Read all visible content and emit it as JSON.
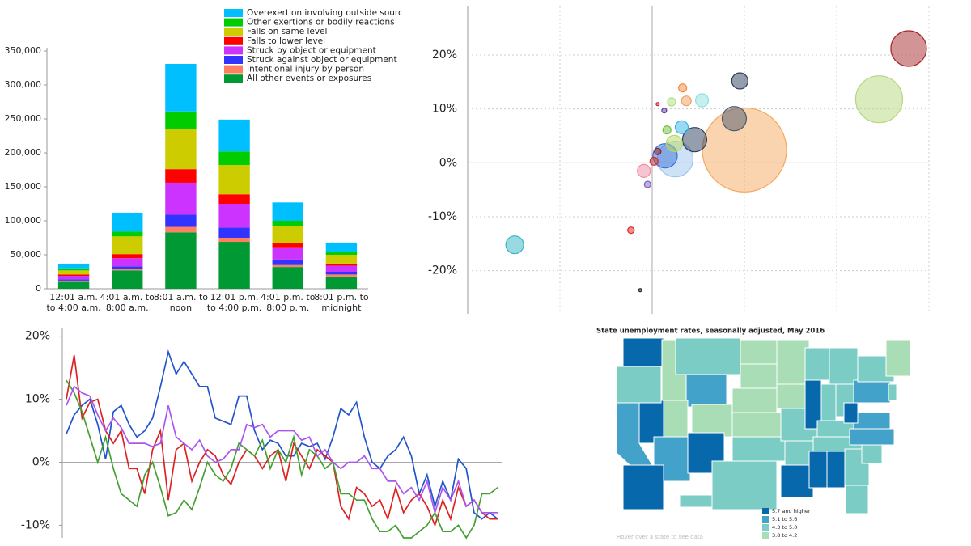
{
  "chart_data": [
    {
      "type": "bar",
      "categories": [
        [
          "12:01 a.m.",
          "to 4:00 a.m."
        ],
        [
          "4:01 a.m. to",
          "8:00 a.m."
        ],
        [
          "8:01 a.m. to",
          "noon"
        ],
        [
          "12:01 p.m.",
          "to 4:00 p.m."
        ],
        [
          "4:01 p.m. to",
          "8:00 p.m."
        ],
        [
          "8:01 p.m. to",
          "midnight"
        ]
      ],
      "series": [
        {
          "name": "Overexertion involving outside sourc",
          "color": "#00bfff",
          "values": [
            7000,
            28000,
            70000,
            47000,
            27000,
            14000
          ]
        },
        {
          "name": "Other exertions or bodily reactions",
          "color": "#00cc00",
          "values": [
            3000,
            7000,
            26000,
            20000,
            8000,
            4000
          ]
        },
        {
          "name": "Falls on same level",
          "color": "#cccc00",
          "values": [
            6000,
            26000,
            59000,
            43000,
            25000,
            13000
          ]
        },
        {
          "name": "Falls to lower level",
          "color": "#ff0000",
          "values": [
            2000,
            6000,
            20000,
            14000,
            6000,
            3000
          ]
        },
        {
          "name": "Struck by object or equipment",
          "color": "#cc33ff",
          "values": [
            5000,
            12000,
            47000,
            35000,
            18000,
            9000
          ]
        },
        {
          "name": "Struck against object or equipment",
          "color": "#3333ff",
          "values": [
            2000,
            4000,
            18000,
            15000,
            7000,
            4000
          ]
        },
        {
          "name": "Intentional injury by person",
          "color": "#ff8060",
          "values": [
            2000,
            2000,
            8000,
            6000,
            4000,
            3000
          ]
        },
        {
          "name": "All other events or exposures",
          "color": "#009933",
          "values": [
            10000,
            27000,
            83000,
            69000,
            32000,
            18000
          ]
        }
      ],
      "ylim": [
        0,
        350000
      ],
      "yticks": [
        0,
        {
          "value": 50000,
          "label": "50,000"
        },
        {
          "value": 100000,
          "label": "100,000"
        },
        {
          "value": 150000,
          "label": "150,000"
        },
        {
          "value": 200000,
          "label": "200,000"
        },
        {
          "value": 250000,
          "label": "250,000"
        },
        {
          "value": 300000,
          "label": "300,000"
        },
        {
          "value": 350000,
          "label": "350,000"
        }
      ],
      "legend": "top-right"
    },
    {
      "type": "scatter",
      "x": [
        27.8,
        24.6,
        10,
        9.5,
        8.9,
        4.6,
        1.4,
        2.5,
        3.2,
        -14.9,
        -0.9,
        -2.3,
        -1.3,
        -0.5,
        3.3,
        3.7,
        5.4,
        2.1,
        1.3,
        0.6,
        1.6,
        2.4,
        0.2,
        0.6
      ],
      "values": [
        21.2,
        11.8,
        2.4,
        15.2,
        8.2,
        4.3,
        1.3,
        0.7,
        6.6,
        -15.2,
        -1.5,
        -12.5,
        -23.6,
        -4,
        13.9,
        11.5,
        11.6,
        11.3,
        9.7,
        10.9,
        6.1,
        3.6,
        0.3,
        2.1
      ],
      "sizes": [
        484,
        841,
        2704,
        100,
        225,
        225,
        225,
        484,
        64,
        121,
        64,
        16,
        4,
        16,
        25,
        36,
        64,
        25,
        9,
        4,
        25,
        100,
        25,
        16
      ],
      "colors": [
        "#a52a2a",
        "#b5d77e",
        "#f5a860",
        "#2c3e5c",
        "#4a5a70",
        "#2c3e5c",
        "#3a6fd8",
        "#9ec5f0",
        "#33b5e5",
        "#33b5c5",
        "#f08aa0",
        "#e02020",
        "#222222",
        "#8060c0",
        "#f08a40",
        "#f0a060",
        "#8ee0e0",
        "#b0e080",
        "#6040a0",
        "#d02040",
        "#70c040",
        "#b8d860",
        "#d03030",
        "#902020"
      ],
      "xlim": [
        -20,
        30
      ],
      "xticks": [
        -10,
        0,
        10,
        20,
        30
      ],
      "ylim": [
        -28,
        29
      ],
      "yticks": [
        {
          "value": -20,
          "label": "-20%"
        },
        {
          "value": -10,
          "label": "-10%"
        },
        {
          "value": 0,
          "label": "0%"
        },
        {
          "value": 10,
          "label": "10%"
        },
        {
          "value": 20,
          "label": "20%"
        }
      ],
      "grid": true
    },
    {
      "type": "line",
      "series": [
        {
          "color": "#2255cc",
          "values": [
            4.5,
            7.5,
            9,
            10,
            6,
            0.5,
            8,
            9,
            6,
            4,
            5,
            7,
            12,
            17.5,
            14,
            16,
            14,
            12,
            12,
            7,
            6.5,
            6,
            10.5,
            10.5,
            5,
            2,
            3.5,
            3,
            1,
            1,
            3,
            2.5,
            3,
            0.5,
            4,
            8.5,
            7.5,
            9.5,
            4,
            0,
            -1,
            1,
            2,
            4,
            1,
            -5,
            -2,
            -7,
            -3,
            -6,
            0.5,
            -1,
            -8,
            -9,
            -8,
            -9
          ]
        },
        {
          "color": "#dd2222",
          "values": [
            10,
            17,
            7,
            9.5,
            10,
            5,
            3,
            5,
            -1,
            -1,
            -5,
            2,
            5,
            -6,
            2,
            3,
            -3,
            0,
            2,
            1,
            -2,
            -3.5,
            0,
            2,
            1,
            -1,
            1,
            2,
            -3,
            3,
            1,
            -1,
            2,
            1,
            0,
            -7,
            -9,
            -4,
            -5,
            -7,
            -6,
            -9,
            -4,
            -8,
            -6,
            -5,
            -7,
            -10,
            -6,
            -9,
            -4,
            -7,
            -6,
            -8,
            -9,
            -9
          ]
        },
        {
          "color": "#44a033",
          "values": [
            13,
            11,
            8,
            4,
            0,
            4,
            -1,
            -5,
            -6,
            -7,
            -2,
            0,
            -4,
            -8.5,
            -8,
            -6,
            -7.5,
            -4,
            0,
            -2,
            -3,
            -1,
            3,
            2,
            1,
            3.5,
            -1,
            2,
            0,
            4,
            -2,
            2,
            1,
            -1,
            0,
            -5,
            -5,
            -6,
            -6,
            -9,
            -11,
            -11,
            -10,
            -12,
            -12,
            -11,
            -10,
            -8,
            -11,
            -11,
            -10,
            -12,
            -10,
            -5,
            -5,
            -4
          ]
        },
        {
          "color": "#aa55ee",
          "values": [
            9,
            12,
            11,
            10.5,
            7.5,
            5,
            7,
            5.5,
            3,
            3,
            3,
            2.5,
            3,
            9,
            4,
            3,
            2,
            3.5,
            1,
            0,
            0.5,
            2,
            2,
            6,
            5.5,
            6,
            4,
            5,
            5,
            5,
            3.5,
            4,
            1,
            2,
            0,
            -1,
            0,
            0,
            1,
            -1,
            -1,
            -3,
            -3,
            -5,
            -4,
            -6,
            -3,
            -8,
            -4,
            -6,
            -3,
            -7,
            -6,
            -8,
            -8,
            -8
          ]
        }
      ],
      "ylim": [
        -12,
        22
      ],
      "yticks": [
        {
          "value": -10,
          "label": "-10%"
        },
        {
          "value": 0,
          "label": "0%"
        },
        {
          "value": 10,
          "label": "10%"
        },
        {
          "value": 20,
          "label": "20%"
        }
      ]
    },
    {
      "type": "map",
      "title": "State unemployment rates, seasonally adjusted, May 2016",
      "legend_labels": [
        "5.7 and higher",
        "5.1 to 5.6",
        "4.3 to 5.0",
        "3.8 to 4.2"
      ],
      "colors": [
        "#0868ac",
        "#43a2ca",
        "#7bccc4",
        "#a8ddb5"
      ],
      "note": "Hover over a state to see data"
    }
  ]
}
